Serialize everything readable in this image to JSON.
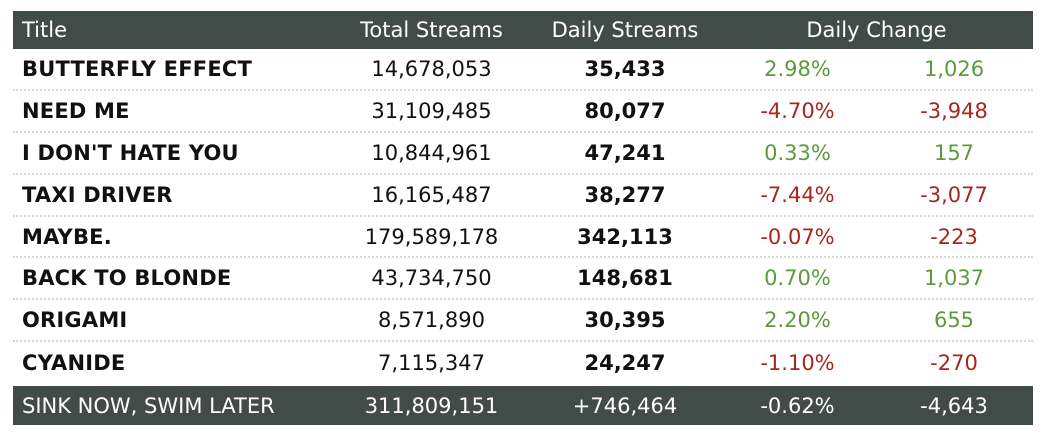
{
  "header": {
    "title": "Title",
    "total_streams": "Total Streams",
    "daily_streams": "Daily Streams",
    "daily_change": "Daily Change"
  },
  "rows": [
    {
      "title": "BUTTERFLY EFFECT",
      "total": "14,678,053",
      "daily": "35,433",
      "pct": "2.98%",
      "abs": "1,026",
      "trend": "pos"
    },
    {
      "title": "NEED ME",
      "total": "31,109,485",
      "daily": "80,077",
      "pct": "-4.70%",
      "abs": "-3,948",
      "trend": "neg"
    },
    {
      "title": "I DON'T HATE YOU",
      "total": "10,844,961",
      "daily": "47,241",
      "pct": "0.33%",
      "abs": "157",
      "trend": "pos"
    },
    {
      "title": "TAXI DRIVER",
      "total": "16,165,487",
      "daily": "38,277",
      "pct": "-7.44%",
      "abs": "-3,077",
      "trend": "neg"
    },
    {
      "title": "MAYBE.",
      "total": "179,589,178",
      "daily": "342,113",
      "pct": "-0.07%",
      "abs": "-223",
      "trend": "neg"
    },
    {
      "title": "BACK TO BLONDE",
      "total": "43,734,750",
      "daily": "148,681",
      "pct": "0.70%",
      "abs": "1,037",
      "trend": "pos"
    },
    {
      "title": "ORIGAMI",
      "total": "8,571,890",
      "daily": "30,395",
      "pct": "2.20%",
      "abs": "655",
      "trend": "pos"
    },
    {
      "title": "CYANIDE",
      "total": "7,115,347",
      "daily": "24,247",
      "pct": "-1.10%",
      "abs": "-270",
      "trend": "neg"
    }
  ],
  "footer": {
    "title": "SINK NOW, SWIM LATER",
    "total": "311,809,151",
    "daily": "+746,464",
    "pct": "-0.62%",
    "abs": "-4,643"
  },
  "colors": {
    "header_bg": "#414b47",
    "positive": "#5d9a3c",
    "negative": "#a8261f"
  }
}
